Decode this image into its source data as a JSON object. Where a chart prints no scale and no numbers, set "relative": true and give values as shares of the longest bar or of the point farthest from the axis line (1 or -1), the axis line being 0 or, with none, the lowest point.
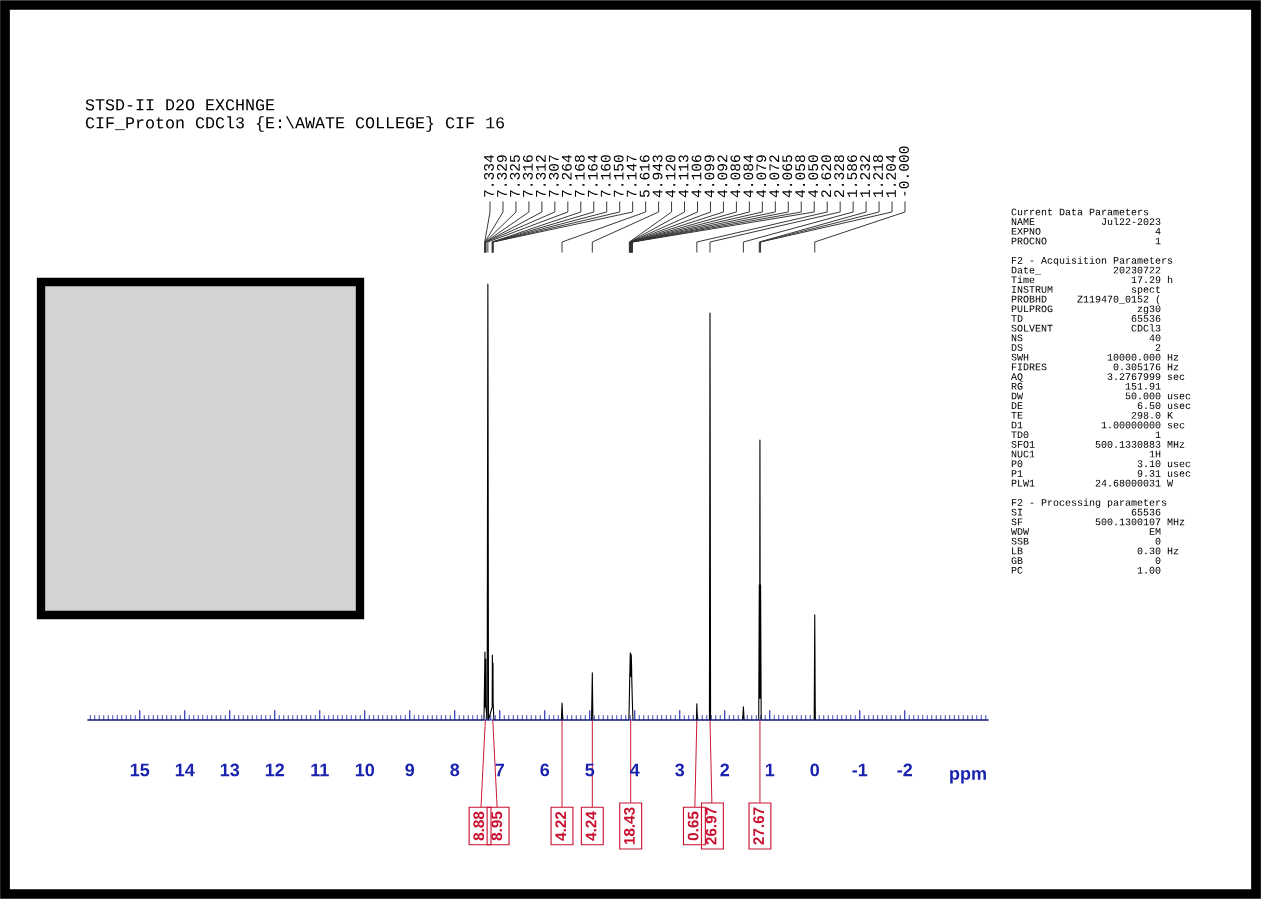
{
  "chart_data": {
    "type": "line",
    "title": "STSD-II D2O EXCHNGE",
    "subtitle": "CIF_Proton CDCl3 {E:\\AWATE COLLEGE} CIF 16",
    "xlabel": "ppm",
    "relative": true,
    "xlim": [
      16.15,
      -3.85
    ],
    "xticks": [
      15,
      14,
      13,
      12,
      11,
      10,
      9,
      8,
      7,
      6,
      5,
      4,
      3,
      2,
      1,
      0,
      -1,
      -2
    ],
    "series": [
      {
        "color": "#000000",
        "x": [
          16.15,
          7.35,
          7.334,
          7.329,
          7.325,
          7.316,
          7.312,
          7.307,
          7.28,
          7.264,
          7.25,
          7.168,
          7.164,
          7.16,
          7.15,
          7.147,
          7.13,
          5.63,
          5.616,
          5.6,
          4.96,
          4.943,
          4.93,
          4.13,
          4.12,
          4.113,
          4.106,
          4.099,
          4.092,
          4.086,
          4.084,
          4.079,
          4.072,
          4.065,
          4.058,
          4.05,
          4.04,
          2.63,
          2.62,
          2.61,
          2.34,
          2.328,
          2.315,
          1.6,
          1.586,
          1.57,
          1.245,
          1.232,
          1.225,
          1.218,
          1.211,
          1.204,
          1.19,
          0.012,
          0.0,
          -0.012,
          -3.85
        ],
        "values": [
          0,
          0,
          0.12,
          0.156,
          0.03,
          0.05,
          0.14,
          0.03,
          0,
          1.0,
          0,
          0.03,
          0.149,
          0.12,
          0.13,
          0.04,
          0,
          0,
          0.039,
          0,
          0,
          0.108,
          0,
          0,
          0.05,
          0.09,
          0.12,
          0.154,
          0.14,
          0.1,
          0.12,
          0.15,
          0.13,
          0.09,
          0.06,
          0.03,
          0,
          0,
          0.037,
          0,
          0,
          0.933,
          0,
          0,
          0.03,
          0,
          0,
          0.31,
          0.05,
          0.642,
          0.05,
          0.31,
          0,
          0,
          0.241,
          0,
          0
        ]
      }
    ],
    "annotations": [
      "Current Data Parameters\nNAME           Jul22-2023\nEXPNO                   4\nPROCNO                  1\n\nF2 - Acquisition Parameters\nDate_            20230722\nTime                17.29 h\nINSTRUM             spect\nPROBHD     Z119470_0152 (\nPULPROG              zg30\nTD                  65536\nSOLVENT             CDCl3\nNS                     40\nDS                      2\nSWH             10000.000 Hz\nFIDRES           0.305176 Hz\nAQ              3.2767999 sec\nRG                 151.91\nDW                 50.000 usec\nDE                   6.50 usec\nTE                  298.0 K\nD1             1.00000000 sec\nTD0                     1\nSFO1          500.1330883 MHz\nNUC1                   1H\nP0                   3.10 usec\nP1                   9.31 usec\nPLW1          24.68000031 W\n\nF2 - Processing parameters\nSI                  65536\nSF            500.1300107 MHz\nWDW                    EM\nSSB                     0\nLB                   0.30 Hz\nGB                      0\nPC                   1.00",
      {
        "text": "7.334",
        "x": 7.334
      },
      {
        "text": "7.329",
        "x": 7.329
      },
      {
        "text": "7.325",
        "x": 7.325
      },
      {
        "text": "7.316",
        "x": 7.316
      },
      {
        "text": "7.312",
        "x": 7.312
      },
      {
        "text": "7.307",
        "x": 7.307
      },
      {
        "text": "7.264",
        "x": 7.264
      },
      {
        "text": "7.168",
        "x": 7.168
      },
      {
        "text": "7.164",
        "x": 7.164
      },
      {
        "text": "7.160",
        "x": 7.16
      },
      {
        "text": "7.150",
        "x": 7.15
      },
      {
        "text": "7.147",
        "x": 7.147
      },
      {
        "text": "5.616",
        "x": 5.616
      },
      {
        "text": "4.943",
        "x": 4.943
      },
      {
        "text": "4.120",
        "x": 4.12
      },
      {
        "text": "4.113",
        "x": 4.113
      },
      {
        "text": "4.106",
        "x": 4.106
      },
      {
        "text": "4.099",
        "x": 4.099
      },
      {
        "text": "4.092",
        "x": 4.092
      },
      {
        "text": "4.086",
        "x": 4.086
      },
      {
        "text": "4.084",
        "x": 4.084
      },
      {
        "text": "4.079",
        "x": 4.079
      },
      {
        "text": "4.072",
        "x": 4.072
      },
      {
        "text": "4.065",
        "x": 4.065
      },
      {
        "text": "4.058",
        "x": 4.058
      },
      {
        "text": "4.050",
        "x": 4.05
      },
      {
        "text": "2.620",
        "x": 2.62
      },
      {
        "text": "2.328",
        "x": 2.328
      },
      {
        "text": "1.586",
        "x": 1.586
      },
      {
        "text": "1.232",
        "x": 1.232
      },
      {
        "text": "1.218",
        "x": 1.218
      },
      {
        "text": "1.204",
        "x": 1.204
      },
      {
        "text": "-0.000",
        "x": 0.0
      },
      {
        "text": "8.88",
        "x": 7.32,
        "y": 0
      },
      {
        "text": "8.95",
        "x": 7.155,
        "y": 0
      },
      {
        "text": "4.22",
        "x": 5.616,
        "y": 0
      },
      {
        "text": "4.24",
        "x": 4.943,
        "y": 0
      },
      {
        "text": "18.43",
        "x": 4.09,
        "y": 0
      },
      {
        "text": "0.65",
        "x": 2.62,
        "y": 0
      },
      {
        "text": "26.97",
        "x": 2.328,
        "y": 0
      },
      {
        "text": "27.67",
        "x": 1.218,
        "y": 0
      }
    ]
  }
}
